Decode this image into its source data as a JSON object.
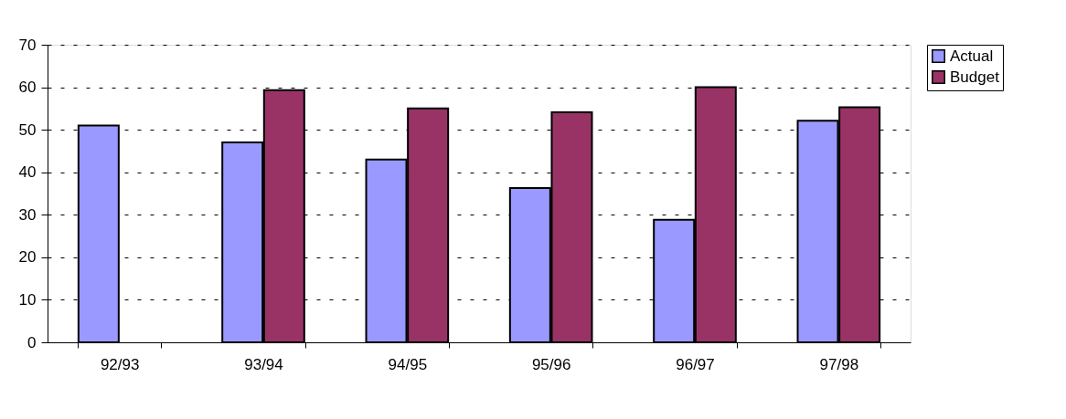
{
  "chart_data": {
    "type": "bar",
    "categories": [
      "92/93",
      "93/94",
      "94/95",
      "95/96",
      "96/97",
      "97/98"
    ],
    "series": [
      {
        "name": "Actual",
        "color": "#9999ff",
        "values": [
          51,
          47,
          43,
          36.3,
          28.8,
          52.1
        ]
      },
      {
        "name": "Budget",
        "color": "#993366",
        "values": [
          null,
          59.3,
          55,
          54.1,
          60,
          55.3
        ]
      }
    ],
    "ylim": [
      0,
      70
    ],
    "yticks": [
      0,
      10,
      20,
      30,
      40,
      50,
      60,
      70
    ],
    "grid": "y",
    "legend": "right"
  }
}
